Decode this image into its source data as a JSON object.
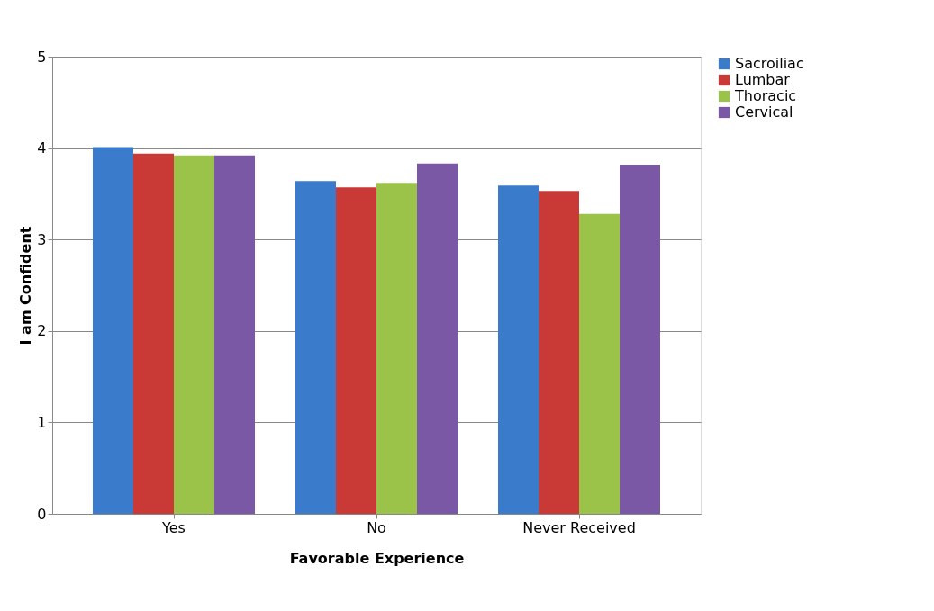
{
  "chart_data": {
    "type": "bar",
    "xlabel": "Favorable Experience",
    "ylabel": "I am Confident",
    "categories": [
      "Yes",
      "No",
      "Never Received"
    ],
    "series": [
      {
        "name": "Sacroiliac",
        "color": "#3a7bcb",
        "values": [
          4.01,
          3.64,
          3.59
        ]
      },
      {
        "name": "Lumbar",
        "color": "#c93a37",
        "values": [
          3.94,
          3.57,
          3.53
        ]
      },
      {
        "name": "Thoracic",
        "color": "#9bc34a",
        "values": [
          3.92,
          3.62,
          3.28
        ]
      },
      {
        "name": "Cervical",
        "color": "#7b58a6",
        "values": [
          3.92,
          3.83,
          3.82
        ]
      }
    ],
    "ylim": [
      0,
      5
    ],
    "yticks": [
      0,
      1,
      2,
      3,
      4,
      5
    ],
    "grid": "y",
    "legend": "right"
  }
}
